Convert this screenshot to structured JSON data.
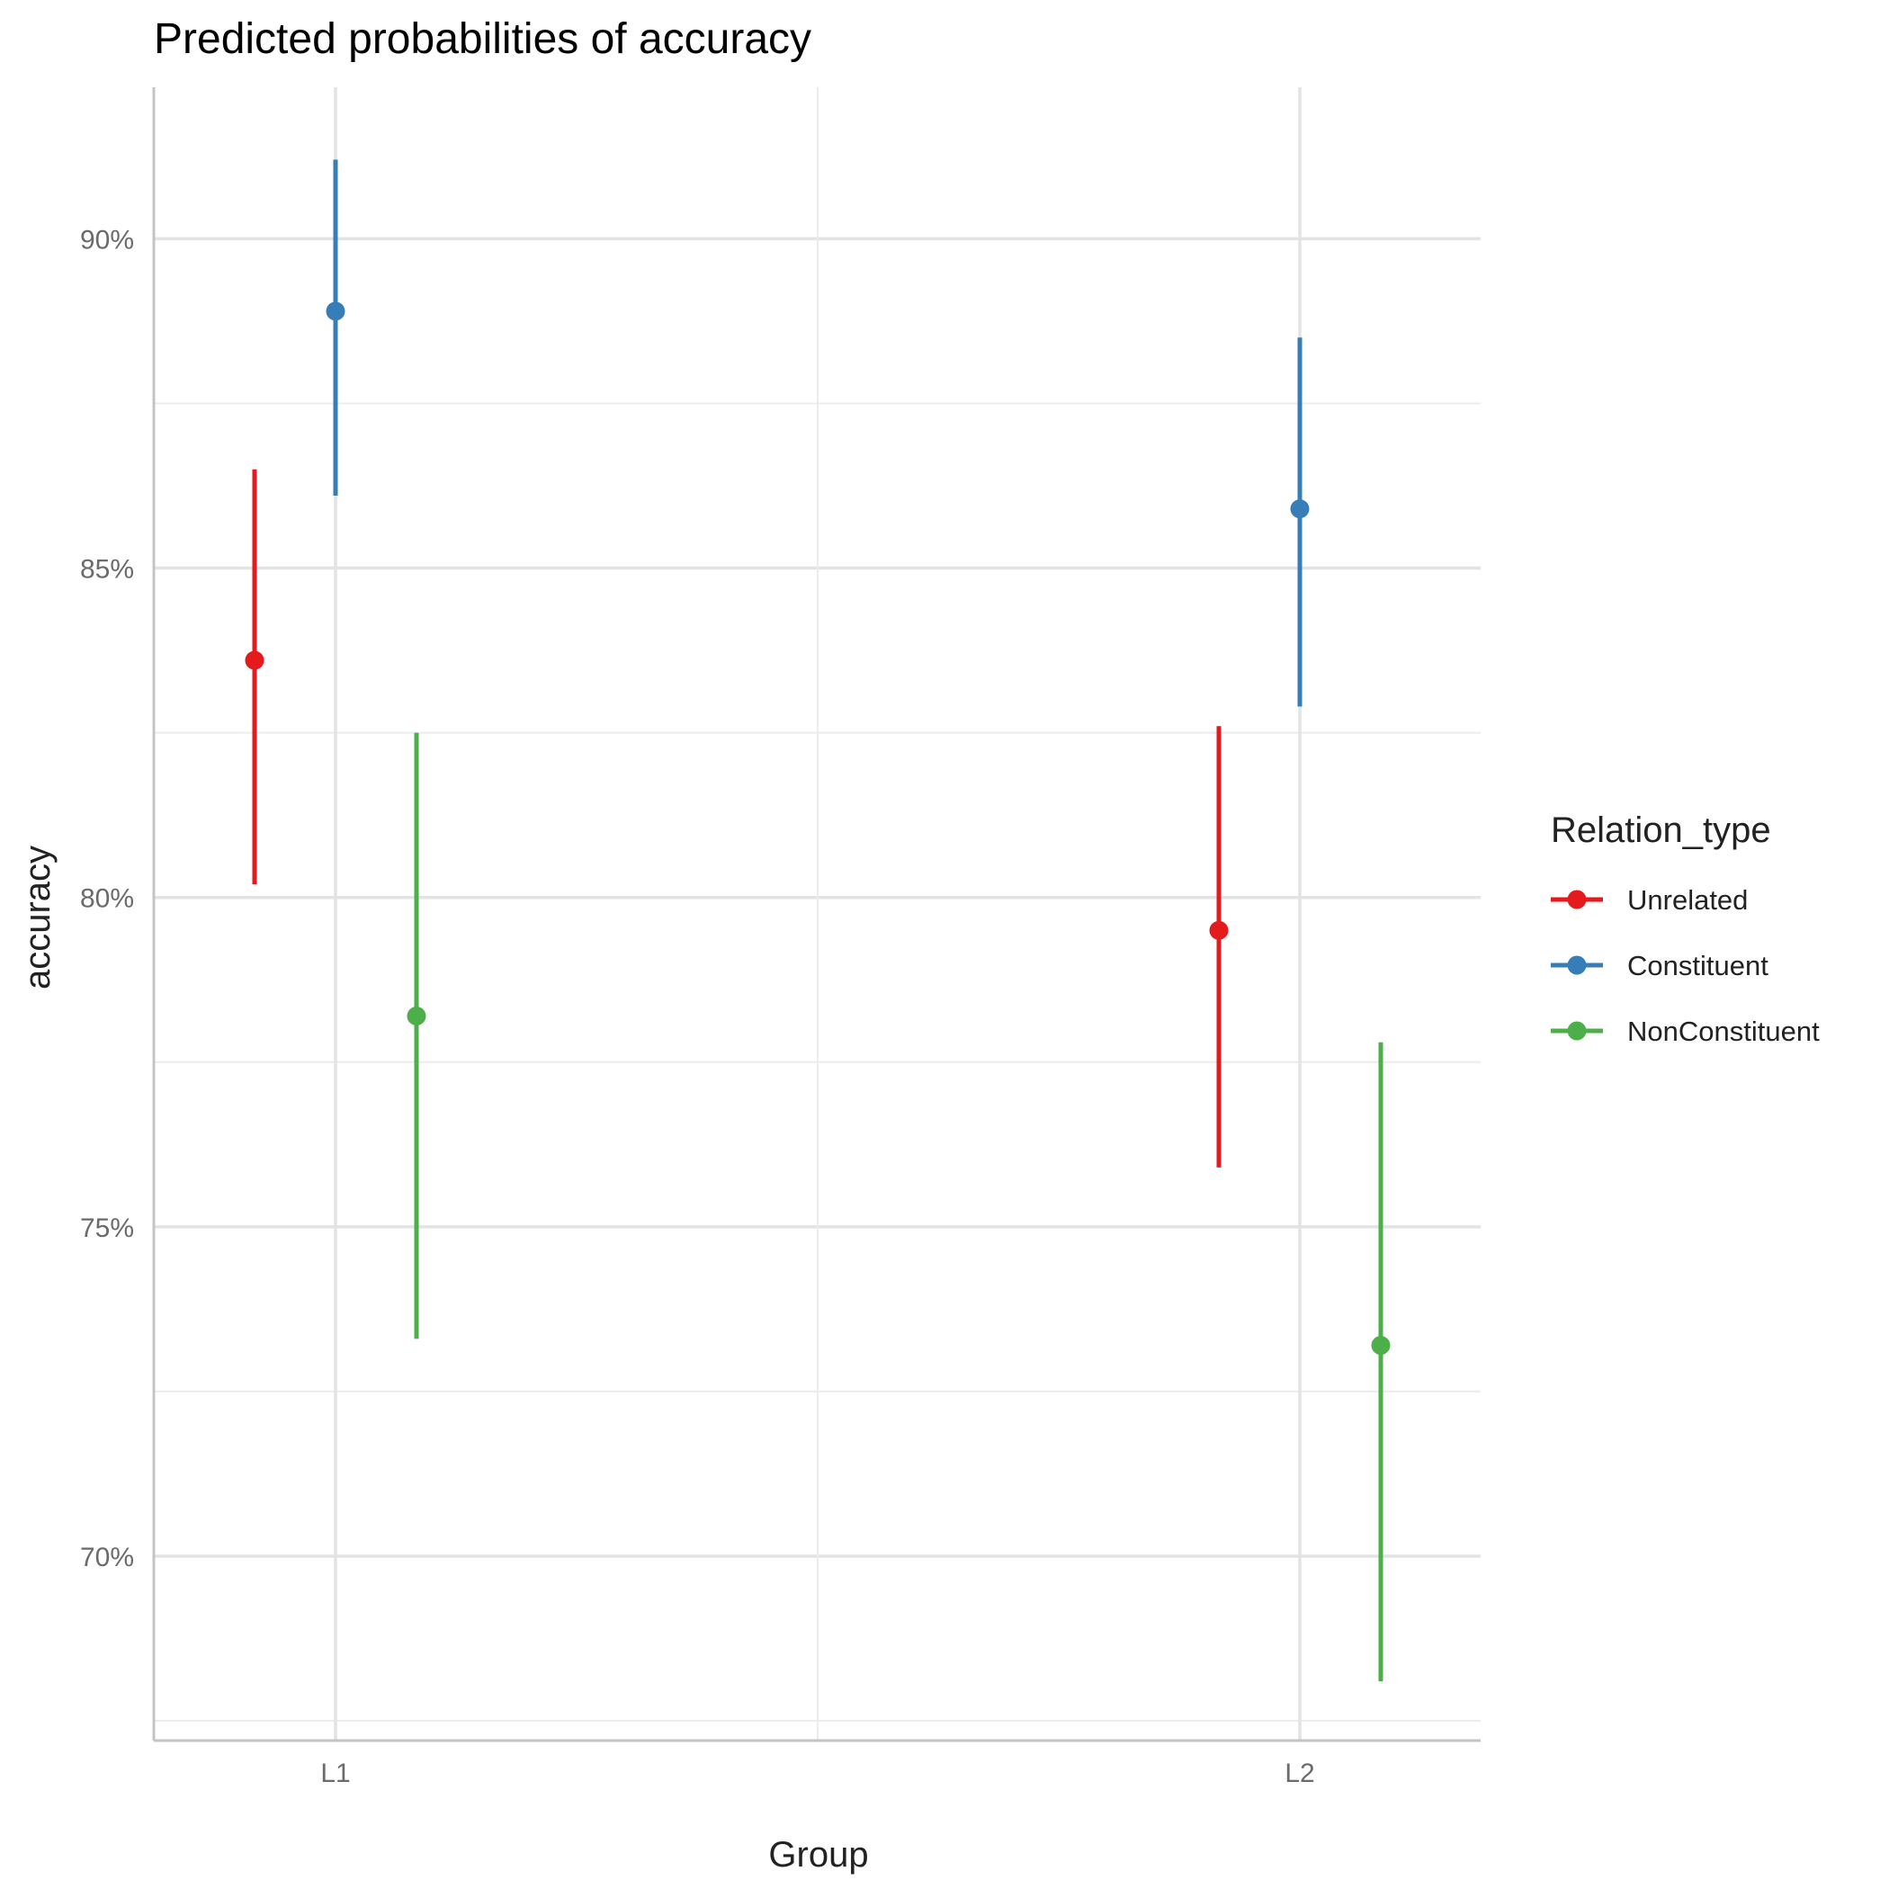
{
  "chart_data": {
    "type": "scatter",
    "title": "Predicted probabilities of accuracy",
    "xlabel": "Group",
    "ylabel": "accuracy",
    "categories": [
      "L1",
      "L2"
    ],
    "ylim": [
      67.2,
      92.3
    ],
    "yticks": [
      70,
      75,
      80,
      85,
      90
    ],
    "ytick_labels": [
      "70%",
      "75%",
      "80%",
      "85%",
      "90%"
    ],
    "y_minor_ticks": [
      67.5,
      72.5,
      77.5,
      82.5,
      87.5
    ],
    "grid": true,
    "legend": {
      "title": "Relation_type",
      "position": "right"
    },
    "series": [
      {
        "name": "Unrelated",
        "color": "#E41A1C",
        "values": [
          83.6,
          79.5
        ],
        "lower": [
          80.2,
          75.9
        ],
        "upper": [
          86.5,
          82.6
        ]
      },
      {
        "name": "Constituent",
        "color": "#377EB8",
        "values": [
          88.9,
          85.9
        ],
        "lower": [
          86.1,
          82.9
        ],
        "upper": [
          91.2,
          88.5
        ]
      },
      {
        "name": "NonConstituent",
        "color": "#4DAF4A",
        "values": [
          78.2,
          73.2
        ],
        "lower": [
          73.3,
          68.1
        ],
        "upper": [
          82.5,
          77.8
        ]
      }
    ]
  }
}
